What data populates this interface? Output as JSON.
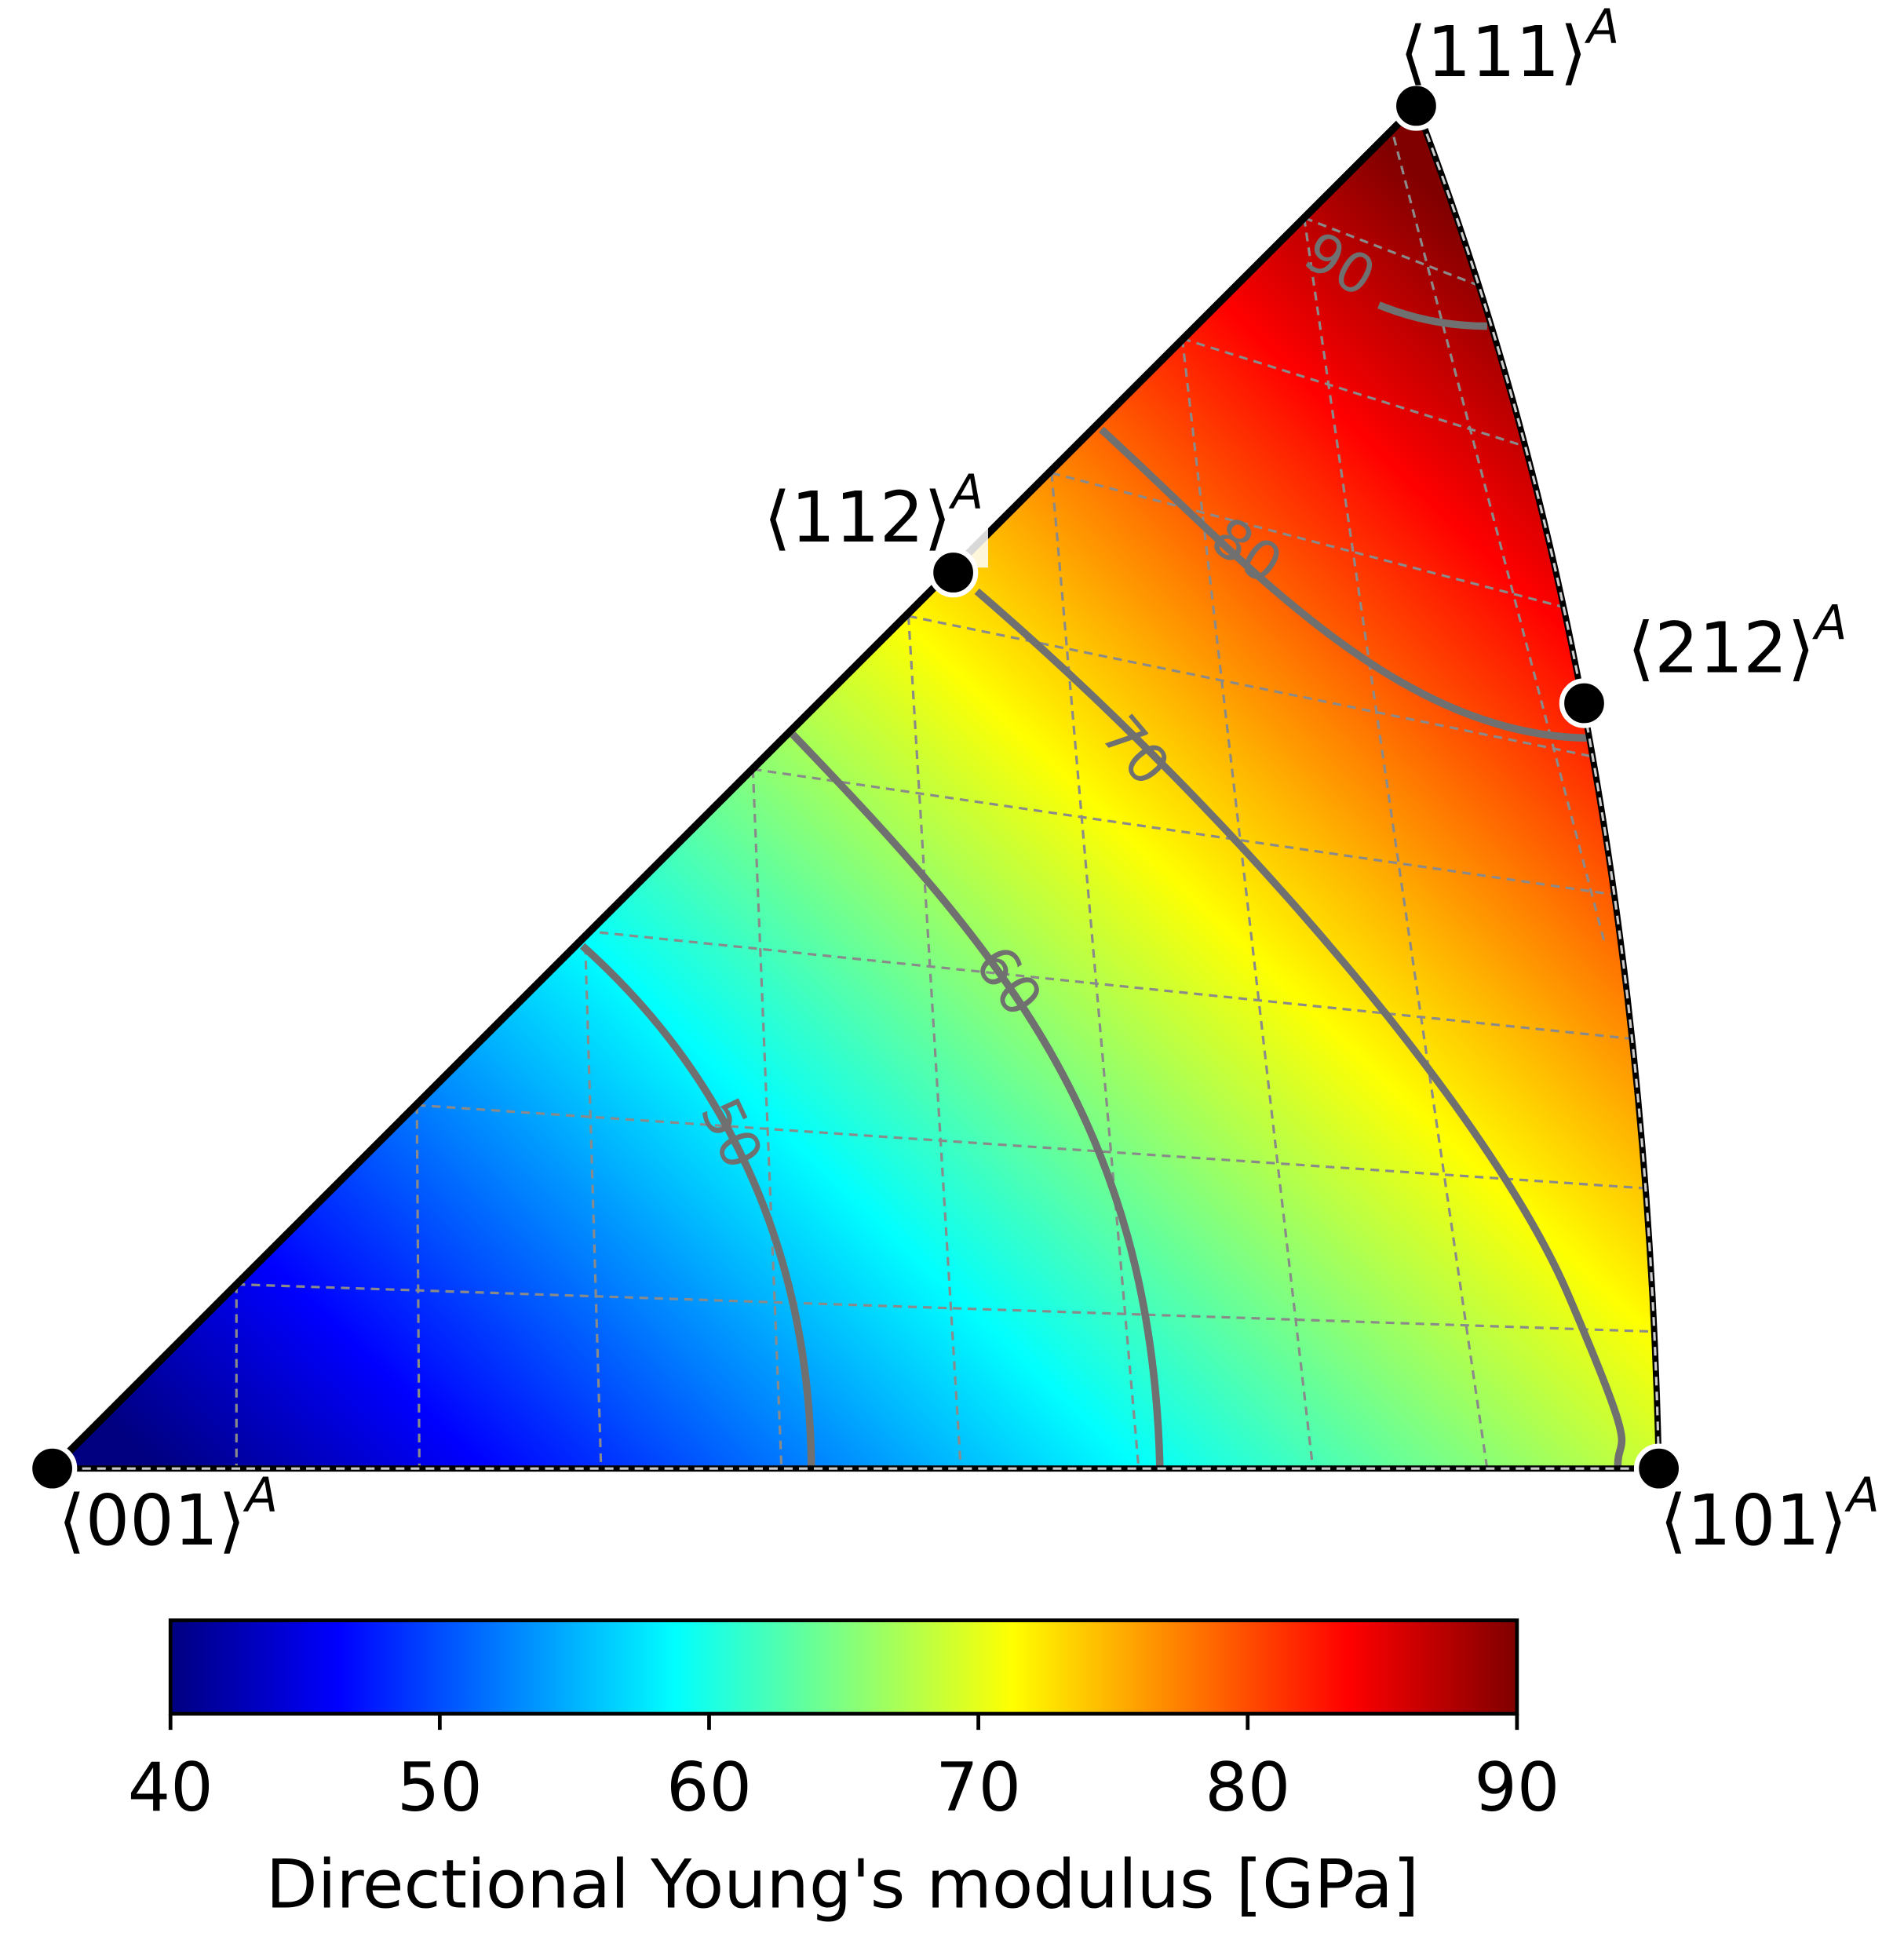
{
  "chart_data": {
    "type": "contour",
    "colormap": "jet",
    "poles": [
      {
        "label": "⟨001⟩",
        "superscript": "A"
      },
      {
        "label": "⟨101⟩",
        "superscript": "A"
      },
      {
        "label": "⟨111⟩",
        "superscript": "A"
      },
      {
        "label": "⟨112⟩",
        "superscript": "A"
      },
      {
        "label": "⟨212⟩",
        "superscript": "A"
      }
    ],
    "levels": [
      50,
      60,
      70,
      80,
      90
    ],
    "contour_color": "#707070",
    "clim": [
      40,
      90
    ],
    "cticks": [
      40,
      50,
      60,
      70,
      80,
      90
    ],
    "colorbar_label": "Directional Young's modulus [GPa]"
  }
}
